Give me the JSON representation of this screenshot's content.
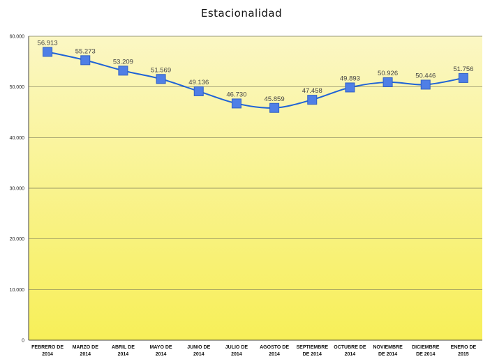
{
  "chart_data": {
    "type": "line",
    "title": "Estacionalidad",
    "categories": [
      [
        "FEBRERO DE",
        "2014"
      ],
      [
        "MARZO DE",
        "2014"
      ],
      [
        "ABRIL DE",
        "2014"
      ],
      [
        "MAYO DE",
        "2014"
      ],
      [
        "JUNIO DE",
        "2014"
      ],
      [
        "JULIO DE",
        "2014"
      ],
      [
        "AGOSTO DE",
        "2014"
      ],
      [
        "SEPTIEMBRE",
        "DE 2014"
      ],
      [
        "OCTUBRE DE",
        "2014"
      ],
      [
        "NOVIEMBRE",
        "DE 2014"
      ],
      [
        "DICIEMBRE",
        "DE 2014"
      ],
      [
        "ENERO DE",
        "2015"
      ]
    ],
    "values": [
      56.913,
      55.273,
      53.209,
      51.569,
      49.136,
      46.73,
      45.859,
      47.458,
      49.893,
      50.926,
      50.446,
      51.756
    ],
    "data_labels": [
      "56.913",
      "55.273",
      "53.209",
      "51.569",
      "49.136",
      "46.730",
      "45.859",
      "47.458",
      "49.893",
      "50.926",
      "50.446",
      "51.756"
    ],
    "y_ticks": [
      0,
      10,
      20,
      30,
      40,
      50,
      60
    ],
    "y_tick_labels": [
      "0",
      "10.000",
      "20.000",
      "30.000",
      "40.000",
      "50.000",
      "60.000"
    ],
    "ylim": [
      0,
      60
    ],
    "xlabel": "",
    "ylabel": "",
    "grid": true,
    "legend": "none",
    "colors": {
      "line": "#1f63d6",
      "marker": "#4f7fe6",
      "marker_edge": "#2f5fc4",
      "bg_top": "#fbf7c4",
      "bg_bottom": "#f7ef58",
      "grid": "#7a7a5a"
    }
  }
}
